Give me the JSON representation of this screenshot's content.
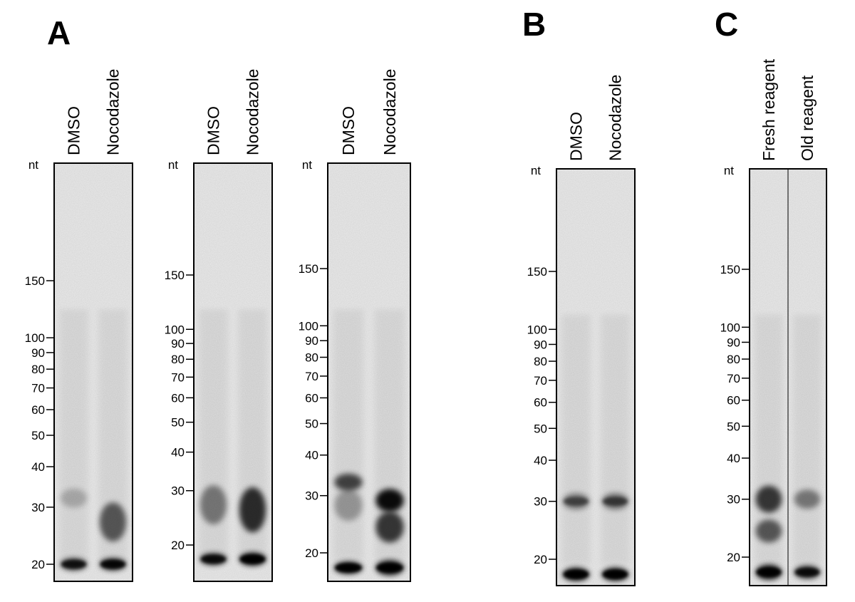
{
  "figure": {
    "nt_label": "nt",
    "panels": [
      {
        "letter": "A",
        "gels": [
          {
            "lanes": [
              {
                "label": "DMSO",
                "bands": [
                  {
                    "nt": 32,
                    "intensity": 0.22,
                    "spread": 0.6
                  },
                  {
                    "nt": 20,
                    "intensity": 0.75,
                    "spread": 0.25
                  }
                ]
              },
              {
                "label": "Nocodazole",
                "bands": [
                  {
                    "nt": 27,
                    "intensity": 0.6,
                    "spread": 1.6
                  },
                  {
                    "nt": 20,
                    "intensity": 0.85,
                    "spread": 0.25
                  }
                ]
              }
            ],
            "markers": [
              {
                "label": "150",
                "nt": 150
              },
              {
                "label": "100",
                "nt": 100
              },
              {
                "label": "90",
                "nt": 90
              },
              {
                "label": "80",
                "nt": 80
              },
              {
                "label": "70",
                "nt": 70
              },
              {
                "label": "60",
                "nt": 60
              },
              {
                "label": "50",
                "nt": 50
              },
              {
                "label": "40",
                "nt": 40
              },
              {
                "label": "30",
                "nt": 30
              },
              {
                "label": "20",
                "nt": 20
              }
            ]
          },
          {
            "lanes": [
              {
                "label": "DMSO",
                "bands": [
                  {
                    "nt": 27,
                    "intensity": 0.45,
                    "spread": 1.6
                  },
                  {
                    "nt": 18,
                    "intensity": 0.8,
                    "spread": 0.25
                  }
                ]
              },
              {
                "label": "Nocodazole",
                "bands": [
                  {
                    "nt": 26,
                    "intensity": 0.8,
                    "spread": 1.9
                  },
                  {
                    "nt": 18,
                    "intensity": 0.95,
                    "spread": 0.3
                  }
                ]
              }
            ],
            "markers": [
              {
                "label": "150",
                "nt": 150
              },
              {
                "label": "100",
                "nt": 100
              },
              {
                "label": "90",
                "nt": 90
              },
              {
                "label": "80",
                "nt": 80
              },
              {
                "label": "70",
                "nt": 70
              },
              {
                "label": "60",
                "nt": 60
              },
              {
                "label": "50",
                "nt": 50
              },
              {
                "label": "40",
                "nt": 40
              },
              {
                "label": "30",
                "nt": 30
              },
              {
                "label": "20",
                "nt": 20
              }
            ]
          },
          {
            "lanes": [
              {
                "label": "DMSO",
                "bands": [
                  {
                    "nt": 33,
                    "intensity": 0.7,
                    "spread": 0.5
                  },
                  {
                    "nt": 28,
                    "intensity": 0.3,
                    "spread": 1.2
                  },
                  {
                    "nt": 18,
                    "intensity": 0.95,
                    "spread": 0.25
                  }
                ]
              },
              {
                "label": "Nocodazole",
                "bands": [
                  {
                    "nt": 29,
                    "intensity": 1.0,
                    "spread": 0.8
                  },
                  {
                    "nt": 24,
                    "intensity": 0.75,
                    "spread": 1.2
                  },
                  {
                    "nt": 18,
                    "intensity": 1.0,
                    "spread": 0.4
                  }
                ]
              }
            ],
            "markers": [
              {
                "label": "150",
                "nt": 150
              },
              {
                "label": "100",
                "nt": 100
              },
              {
                "label": "90",
                "nt": 90
              },
              {
                "label": "80",
                "nt": 80
              },
              {
                "label": "70",
                "nt": 70
              },
              {
                "label": "60",
                "nt": 60
              },
              {
                "label": "50",
                "nt": 50
              },
              {
                "label": "40",
                "nt": 40
              },
              {
                "label": "30",
                "nt": 30
              },
              {
                "label": "20",
                "nt": 20
              }
            ]
          }
        ]
      },
      {
        "letter": "B",
        "gels": [
          {
            "lanes": [
              {
                "label": "DMSO",
                "bands": [
                  {
                    "nt": 30,
                    "intensity": 0.45,
                    "spread": 0.45
                  },
                  {
                    "nt": 18,
                    "intensity": 1.0,
                    "spread": 0.3
                  }
                ]
              },
              {
                "label": "Nocodazole",
                "bands": [
                  {
                    "nt": 30,
                    "intensity": 0.5,
                    "spread": 0.45
                  },
                  {
                    "nt": 18,
                    "intensity": 1.0,
                    "spread": 0.3
                  }
                ]
              }
            ],
            "markers": [
              {
                "label": "150",
                "nt": 150
              },
              {
                "label": "100",
                "nt": 100
              },
              {
                "label": "90",
                "nt": 90
              },
              {
                "label": "80",
                "nt": 80
              },
              {
                "label": "70",
                "nt": 70
              },
              {
                "label": "60",
                "nt": 60
              },
              {
                "label": "50",
                "nt": 50
              },
              {
                "label": "40",
                "nt": 40
              },
              {
                "label": "30",
                "nt": 30
              },
              {
                "label": "20",
                "nt": 20
              }
            ]
          }
        ]
      },
      {
        "letter": "C",
        "gels": [
          {
            "lanes": [
              {
                "label": "Fresh reagent",
                "bands": [
                  {
                    "nt": 30,
                    "intensity": 0.75,
                    "spread": 1.0
                  },
                  {
                    "nt": 24,
                    "intensity": 0.6,
                    "spread": 0.8
                  },
                  {
                    "nt": 18,
                    "intensity": 1.0,
                    "spread": 0.4
                  }
                ]
              },
              {
                "label": "Old reagent",
                "bands": [
                  {
                    "nt": 30,
                    "intensity": 0.45,
                    "spread": 0.6
                  },
                  {
                    "nt": 18,
                    "intensity": 0.8,
                    "spread": 0.3
                  }
                ]
              }
            ],
            "markers": [
              {
                "label": "150",
                "nt": 150
              },
              {
                "label": "100",
                "nt": 100
              },
              {
                "label": "90",
                "nt": 90
              },
              {
                "label": "80",
                "nt": 80
              },
              {
                "label": "70",
                "nt": 70
              },
              {
                "label": "60",
                "nt": 60
              },
              {
                "label": "50",
                "nt": 50
              },
              {
                "label": "40",
                "nt": 40
              },
              {
                "label": "30",
                "nt": 30
              },
              {
                "label": "20",
                "nt": 20
              }
            ]
          }
        ]
      }
    ]
  }
}
